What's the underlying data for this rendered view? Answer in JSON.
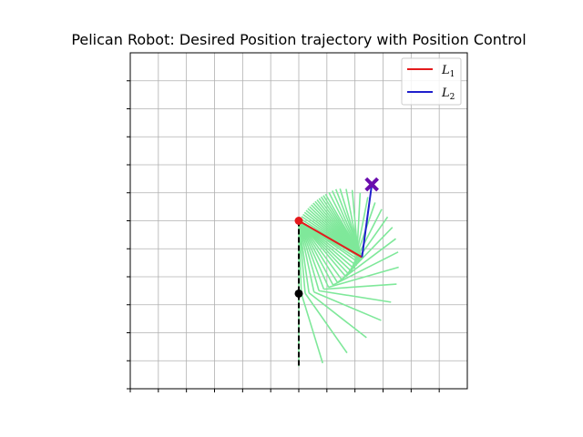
{
  "chart_data": {
    "type": "line",
    "title": "Pelican Robot: Desired Position trajectory with Position Control",
    "xlabel": "",
    "ylabel": "",
    "xlim": [
      -0.6,
      0.6
    ],
    "ylim": [
      -0.6,
      0.6
    ],
    "grid": true,
    "tick_labels_visible": false,
    "x_ticks": [
      -0.6,
      -0.5,
      -0.4,
      -0.3,
      -0.2,
      -0.1,
      0.0,
      0.1,
      0.2,
      0.3,
      0.4,
      0.5
    ],
    "y_ticks": [
      -0.6,
      -0.5,
      -0.4,
      -0.3,
      -0.2,
      -0.1,
      0.0,
      0.1,
      0.2,
      0.3,
      0.4,
      0.5
    ],
    "legend": {
      "position": "top-right",
      "entries": [
        {
          "label": "L",
          "sub": "1",
          "color": "#e41a1c"
        },
        {
          "label": "L",
          "sub": "2",
          "color": "#1f1fcc"
        }
      ]
    },
    "base": {
      "x": 0.0,
      "y": 0.0
    },
    "link1_length": 0.26,
    "link2_length": 0.26,
    "initial_end_effector": {
      "x": 0.0,
      "y": -0.26
    },
    "initial_arm_vertical": {
      "x": 0.0,
      "y": -0.52
    },
    "desired_position": {
      "x": 0.26,
      "y": 0.13
    },
    "final_link1": {
      "from": {
        "x": 0.0,
        "y": 0.0
      },
      "to": {
        "x": 0.225,
        "y": -0.13
      }
    },
    "final_link2": {
      "from": {
        "x": 0.225,
        "y": -0.13
      },
      "to": {
        "x": 0.26,
        "y": 0.13
      }
    },
    "history_joint_angles_deg": [
      [
        -90,
        0
      ],
      [
        -88,
        15
      ],
      [
        -85,
        30
      ],
      [
        -82,
        44
      ],
      [
        -78,
        55
      ],
      [
        -74,
        65
      ],
      [
        -70,
        74
      ],
      [
        -66,
        82
      ],
      [
        -62,
        89
      ],
      [
        -58,
        95
      ],
      [
        -54,
        100
      ],
      [
        -50,
        105
      ],
      [
        -47,
        110
      ],
      [
        -44,
        115
      ],
      [
        -41,
        120
      ],
      [
        -38,
        125
      ],
      [
        -35,
        130
      ],
      [
        -33,
        134
      ],
      [
        -31,
        138
      ],
      [
        -30,
        141
      ],
      [
        -30,
        144
      ],
      [
        -30,
        147
      ],
      [
        -30,
        150
      ],
      [
        -30,
        152
      ],
      [
        -30,
        154
      ],
      [
        -30,
        156
      ],
      [
        -30,
        158
      ],
      [
        -30,
        160
      ],
      [
        -30,
        162
      ],
      [
        -30,
        164
      ],
      [
        -30,
        166
      ],
      [
        -30,
        168
      ],
      [
        -30,
        170
      ],
      [
        -30,
        172
      ],
      [
        -30,
        174
      ],
      [
        -30,
        176
      ],
      [
        -30,
        178
      ],
      [
        -30,
        180
      ],
      [
        -30,
        182
      ]
    ],
    "colors": {
      "link1": "#e41a1c",
      "link2": "#1f1fcc",
      "history": "#7fe89a",
      "initial": "#000000",
      "desired_marker": "#6a0dad",
      "base_marker": "#e41a1c",
      "joint_marker": "#000000"
    }
  }
}
